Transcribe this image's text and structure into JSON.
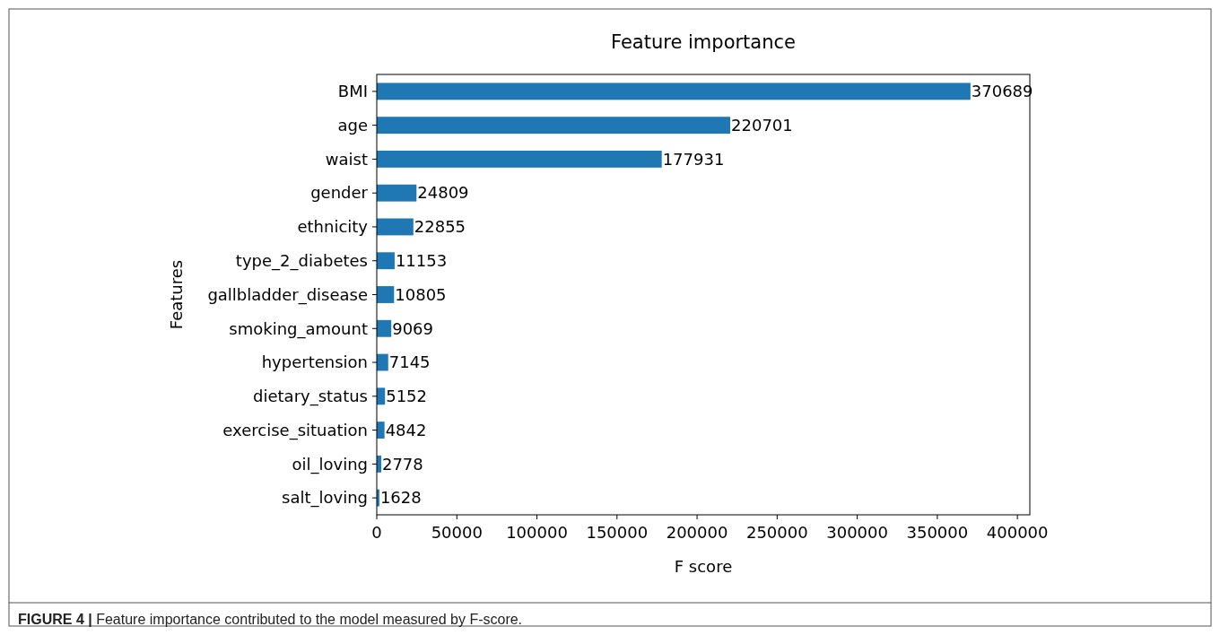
{
  "chart_data": {
    "type": "bar",
    "orientation": "horizontal",
    "title": "Feature importance",
    "xlabel": "F score",
    "ylabel": "Features",
    "categories": [
      "BMI",
      "age",
      "waist",
      "gender",
      "ethnicity",
      "type_2_diabetes",
      "gallbladder_disease",
      "smoking_amount",
      "hypertension",
      "dietary_status",
      "exercise_situation",
      "oil_loving",
      "salt_loving"
    ],
    "values": [
      370689,
      220701,
      177931,
      24809,
      22855,
      11153,
      10805,
      9069,
      7145,
      5152,
      4842,
      2778,
      1628
    ],
    "color": "#1f77b4",
    "data_labels": true,
    "xlim": [
      0,
      407758
    ],
    "xticks": [
      0,
      50000,
      100000,
      150000,
      200000,
      250000,
      300000,
      350000,
      400000
    ],
    "annotations": [
      "FIGURE 4 | Feature importance contributed to the model measured by F-score."
    ]
  }
}
